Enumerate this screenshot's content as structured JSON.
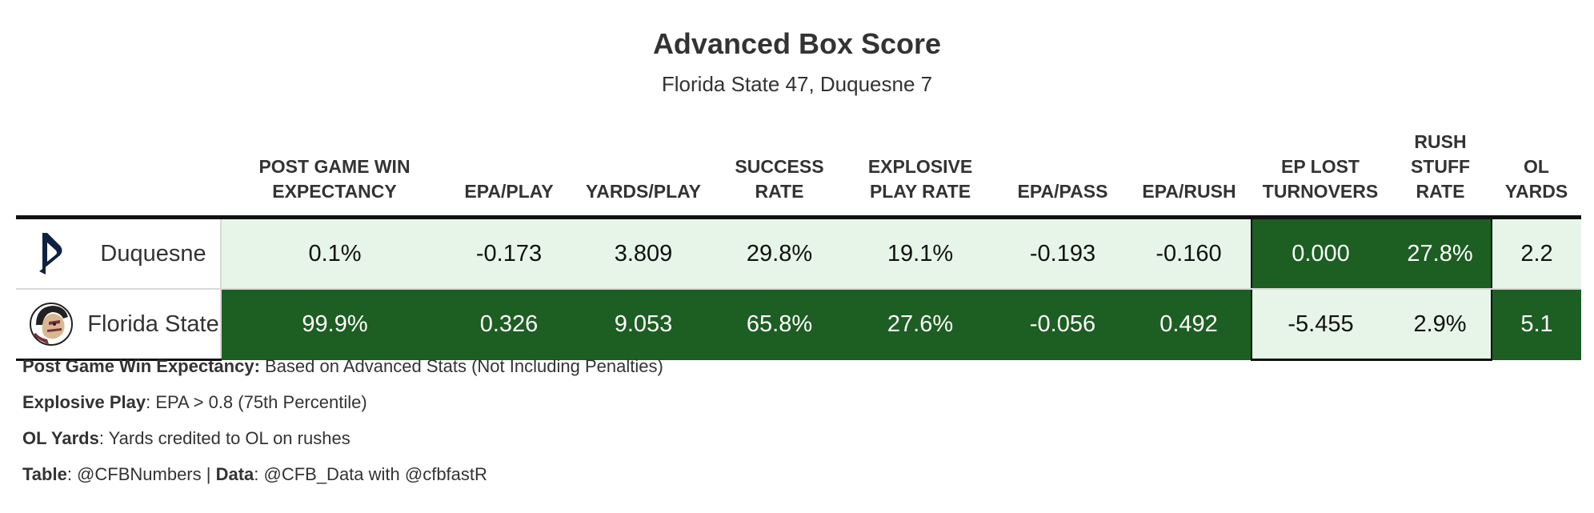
{
  "title": "Advanced Box Score",
  "subtitle": "Florida State 47, Duquesne 7",
  "colors": {
    "dark_green": "#1d5e22",
    "light_green": "#e6f5e7",
    "text_dark": "#111111",
    "text_light": "#ffffff",
    "duquesne_navy": "#0f2041",
    "fsu_garnet": "#782f40"
  },
  "columns": {
    "post_game_wp": "POST GAME WIN EXPECTANCY",
    "epa_play": "EPA/PLAY",
    "yards_play": "YARDS/PLAY",
    "success_rate": "SUCCESS RATE",
    "explosive_rate": "EXPLOSIVE PLAY RATE",
    "epa_pass": "EPA/PASS",
    "epa_rush": "EPA/RUSH",
    "ep_lost_turnovers": "EP LOST TURNOVERS",
    "rush_stuff_rate": "RUSH STUFF RATE",
    "ol_yards": "OL YARDS"
  },
  "chart_data": {
    "type": "table",
    "title": "Advanced Box Score",
    "subtitle": "Florida State 47, Duquesne 7",
    "headers": [
      "POST GAME WIN EXPECTANCY",
      "EPA/PLAY",
      "YARDS/PLAY",
      "SUCCESS RATE",
      "EXPLOSIVE PLAY RATE",
      "EPA/PASS",
      "EPA/RUSH",
      "EP LOST TURNOVERS",
      "RUSH STUFF RATE",
      "OL YARDS"
    ],
    "rows": [
      {
        "team": "Duquesne",
        "logo": "duquesne-logo-icon",
        "post_game_wp": "0.1%",
        "epa_play": "-0.173",
        "yards_play": "3.809",
        "success_rate": "29.8%",
        "explosive_rate": "19.1%",
        "epa_pass": "-0.193",
        "epa_rush": "-0.160",
        "ep_lost_turnovers": "0.000",
        "rush_stuff_rate": "27.8%",
        "ol_yards": "2.2"
      },
      {
        "team": "Florida State",
        "logo": "fsu-seminole-logo-icon",
        "post_game_wp": "99.9%",
        "epa_play": "0.326",
        "yards_play": "9.053",
        "success_rate": "65.8%",
        "explosive_rate": "27.6%",
        "epa_pass": "-0.056",
        "epa_rush": "0.492",
        "ep_lost_turnovers": "-5.455",
        "rush_stuff_rate": "2.9%",
        "ol_yards": "5.1"
      }
    ],
    "highlight_winner": {
      "Duquesne": [
        "ep_lost_turnovers",
        "rush_stuff_rate"
      ],
      "Florida State": [
        "post_game_wp",
        "epa_play",
        "yards_play",
        "success_rate",
        "explosive_rate",
        "epa_pass",
        "epa_rush",
        "ol_yards"
      ]
    }
  },
  "notes": {
    "wp_label": "Post Game Win Expectancy:",
    "wp_text": " Based on Advanced Stats (Not Including Penalties)",
    "explosive_label": "Explosive Play",
    "explosive_text": ": EPA > 0.8 (75th Percentile)",
    "ol_label": "OL Yards",
    "ol_text": ": Yards credited to OL on rushes",
    "table_label": "Table",
    "table_text": ": @CFBNumbers | ",
    "data_label": "Data",
    "data_text": ": @CFB_Data with @cfbfastR"
  }
}
